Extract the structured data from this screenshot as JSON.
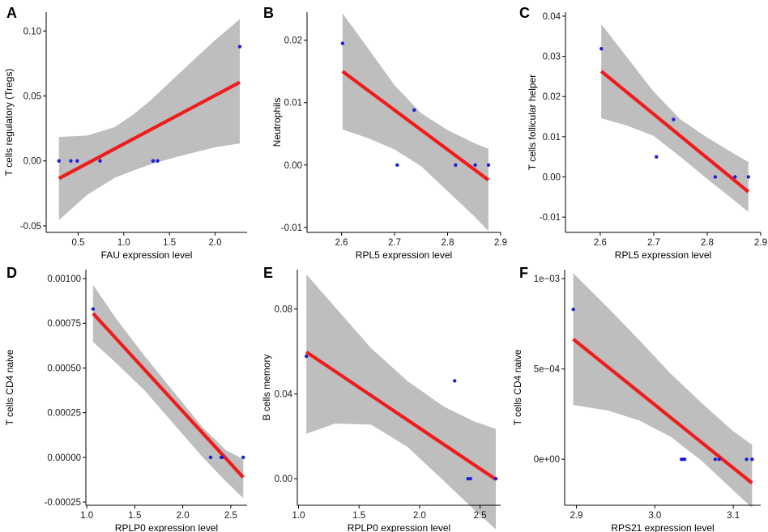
{
  "figure": {
    "style": {
      "ribbon_color": "#bebebe",
      "line_color": "#ee1c1c",
      "point_color": "#1f1fd6",
      "axis_color": "#000000"
    }
  },
  "chart_data": [
    {
      "panel": "A",
      "type": "scatter",
      "xlabel": "FAU expression level",
      "ylabel": "T cells regulatory (Tregs)",
      "xlim": [
        0.15,
        2.35
      ],
      "ylim": [
        -0.055,
        0.1145
      ],
      "xticks": [
        {
          "v": 0.5,
          "label": "0.5"
        },
        {
          "v": 1.0,
          "label": "1.0"
        },
        {
          "v": 1.5,
          "label": "1.5"
        },
        {
          "v": 2.0,
          "label": "2.0"
        }
      ],
      "yticks": [
        {
          "v": -0.05,
          "label": "-0.05"
        },
        {
          "v": 0.0,
          "label": "0.00"
        },
        {
          "v": 0.05,
          "label": "0.05"
        },
        {
          "v": 0.1,
          "label": "0.10"
        }
      ],
      "points": [
        [
          0.29,
          0.0
        ],
        [
          0.42,
          0.0
        ],
        [
          0.49,
          0.0
        ],
        [
          0.74,
          0.0
        ],
        [
          1.32,
          0.0
        ],
        [
          1.37,
          0.0
        ],
        [
          2.27,
          0.088
        ]
      ],
      "fit_line": [
        [
          0.29,
          -0.0135
        ],
        [
          2.27,
          0.0605
        ]
      ],
      "ribbon": [
        {
          "x": 0.29,
          "lo": -0.0455,
          "hi": 0.0185
        },
        {
          "x": 0.6,
          "lo": -0.026,
          "hi": 0.0195
        },
        {
          "x": 0.9,
          "lo": -0.013,
          "hi": 0.026
        },
        {
          "x": 1.1,
          "lo": -0.0075,
          "hi": 0.0355
        },
        {
          "x": 1.3,
          "lo": -0.0025,
          "hi": 0.047
        },
        {
          "x": 1.6,
          "lo": 0.0035,
          "hi": 0.067
        },
        {
          "x": 2.0,
          "lo": 0.0105,
          "hi": 0.093
        },
        {
          "x": 2.27,
          "lo": 0.0135,
          "hi": 0.109
        }
      ]
    },
    {
      "panel": "B",
      "type": "scatter",
      "xlabel": "RPL5 expression level",
      "ylabel": "Neutrophils",
      "xlim": [
        2.535,
        2.9
      ],
      "ylim": [
        -0.0108,
        0.0245
      ],
      "xticks": [
        {
          "v": 2.6,
          "label": "2.6"
        },
        {
          "v": 2.7,
          "label": "2.7"
        },
        {
          "v": 2.8,
          "label": "2.8"
        },
        {
          "v": 2.9,
          "label": "2.9"
        }
      ],
      "yticks": [
        {
          "v": -0.01,
          "label": "-0.01"
        },
        {
          "v": 0.0,
          "label": "0.00"
        },
        {
          "v": 0.01,
          "label": "0.01"
        },
        {
          "v": 0.02,
          "label": "0.02"
        }
      ],
      "points": [
        [
          2.602,
          0.0195
        ],
        [
          2.705,
          0.0
        ],
        [
          2.737,
          0.0088
        ],
        [
          2.815,
          0.0
        ],
        [
          2.852,
          0.0
        ],
        [
          2.877,
          0.0
        ]
      ],
      "fit_line": [
        [
          2.602,
          0.015
        ],
        [
          2.877,
          -0.0024
        ]
      ],
      "ribbon": [
        {
          "x": 2.602,
          "lo": 0.0057,
          "hi": 0.0243
        },
        {
          "x": 2.65,
          "lo": 0.0043,
          "hi": 0.0187
        },
        {
          "x": 2.7,
          "lo": 0.0025,
          "hi": 0.0128
        },
        {
          "x": 2.75,
          "lo": -0.0002,
          "hi": 0.0083
        },
        {
          "x": 2.8,
          "lo": -0.0042,
          "hi": 0.0056
        },
        {
          "x": 2.85,
          "lo": -0.0082,
          "hi": 0.0035
        },
        {
          "x": 2.877,
          "lo": -0.0106,
          "hi": 0.0026
        }
      ]
    },
    {
      "panel": "C",
      "type": "scatter",
      "xlabel": "RPL5 expression level",
      "ylabel": "T cells follicular helper",
      "xlim": [
        2.535,
        2.9
      ],
      "ylim": [
        -0.0138,
        0.041
      ],
      "xticks": [
        {
          "v": 2.6,
          "label": "2.6"
        },
        {
          "v": 2.7,
          "label": "2.7"
        },
        {
          "v": 2.8,
          "label": "2.8"
        },
        {
          "v": 2.9,
          "label": "2.9"
        }
      ],
      "yticks": [
        {
          "v": -0.01,
          "label": "-0.01"
        },
        {
          "v": 0.0,
          "label": "0.00"
        },
        {
          "v": 0.01,
          "label": "0.01"
        },
        {
          "v": 0.02,
          "label": "0.02"
        },
        {
          "v": 0.03,
          "label": "0.03"
        },
        {
          "v": 0.04,
          "label": "0.04"
        }
      ],
      "points": [
        [
          2.602,
          0.0319
        ],
        [
          2.705,
          0.005
        ],
        [
          2.737,
          0.0143
        ],
        [
          2.815,
          0.0
        ],
        [
          2.852,
          0.0
        ],
        [
          2.877,
          0.0
        ]
      ],
      "fit_line": [
        [
          2.602,
          0.0263
        ],
        [
          2.877,
          -0.0037
        ]
      ],
      "ribbon": [
        {
          "x": 2.602,
          "lo": 0.0146,
          "hi": 0.038
        },
        {
          "x": 2.65,
          "lo": 0.0128,
          "hi": 0.0298
        },
        {
          "x": 2.7,
          "lo": 0.0102,
          "hi": 0.0212
        },
        {
          "x": 2.75,
          "lo": 0.005,
          "hi": 0.0143
        },
        {
          "x": 2.8,
          "lo": -0.0005,
          "hi": 0.0098
        },
        {
          "x": 2.85,
          "lo": -0.0058,
          "hi": 0.0058
        },
        {
          "x": 2.877,
          "lo": -0.0087,
          "hi": 0.0037
        }
      ]
    },
    {
      "panel": "D",
      "type": "scatter",
      "xlabel": "RPLP0 expression level",
      "ylabel": "T cells CD4 naive",
      "xlim": [
        0.99,
        2.67
      ],
      "ylim": [
        -0.000268,
        0.00105
      ],
      "xticks": [
        {
          "v": 1.0,
          "label": "1.0"
        },
        {
          "v": 1.5,
          "label": "1.5"
        },
        {
          "v": 2.0,
          "label": "2.0"
        },
        {
          "v": 2.5,
          "label": "2.5"
        }
      ],
      "yticks": [
        {
          "v": -0.00025,
          "label": "-0.00025"
        },
        {
          "v": 0.0,
          "label": "0.00000"
        },
        {
          "v": 0.00025,
          "label": "0.00025"
        },
        {
          "v": 0.0005,
          "label": "0.00050"
        },
        {
          "v": 0.00075,
          "label": "0.00075"
        },
        {
          "v": 0.001,
          "label": "0.00100"
        }
      ],
      "points": [
        [
          1.065,
          0.00083
        ],
        [
          2.29,
          0.0
        ],
        [
          2.4,
          0.0
        ],
        [
          2.41,
          0.0
        ],
        [
          2.63,
          0.0
        ]
      ],
      "fit_line": [
        [
          1.065,
          0.000805
        ],
        [
          2.63,
          -0.000112
        ]
      ],
      "ribbon": [
        {
          "x": 1.065,
          "lo": 0.000645,
          "hi": 0.000965
        },
        {
          "x": 1.3,
          "lo": 0.00053,
          "hi": 0.00078
        },
        {
          "x": 1.6,
          "lo": 0.000375,
          "hi": 0.000568
        },
        {
          "x": 1.9,
          "lo": 0.00019,
          "hi": 0.00037
        },
        {
          "x": 2.2,
          "lo": 5e-06,
          "hi": 0.000172
        },
        {
          "x": 2.45,
          "lo": -0.000135,
          "hi": 4e-05
        },
        {
          "x": 2.63,
          "lo": -0.000228,
          "hi": -1e-05
        }
      ]
    },
    {
      "panel": "E",
      "type": "scatter",
      "xlabel": "RPLP0 expression level",
      "ylabel": "B cells memory",
      "xlim": [
        0.99,
        2.67
      ],
      "ylim": [
        -0.0125,
        0.0985
      ],
      "xticks": [
        {
          "v": 1.0,
          "label": "1.0"
        },
        {
          "v": 1.5,
          "label": "1.5"
        },
        {
          "v": 2.0,
          "label": "2.0"
        },
        {
          "v": 2.5,
          "label": "2.5"
        }
      ],
      "yticks": [
        {
          "v": 0.0,
          "label": "0.00"
        },
        {
          "v": 0.04,
          "label": "0.04"
        },
        {
          "v": 0.08,
          "label": "0.08"
        }
      ],
      "points": [
        [
          1.065,
          0.0577
        ],
        [
          2.29,
          0.0461
        ],
        [
          2.4,
          0.0
        ],
        [
          2.42,
          0.0
        ],
        [
          2.63,
          0.0
        ]
      ],
      "fit_line": [
        [
          1.065,
          0.0597
        ],
        [
          2.63,
          -0.0003
        ]
      ],
      "ribbon": [
        {
          "x": 1.065,
          "lo": 0.0212,
          "hi": 0.0962
        },
        {
          "x": 1.3,
          "lo": 0.026,
          "hi": 0.081
        },
        {
          "x": 1.6,
          "lo": 0.0255,
          "hi": 0.0615
        },
        {
          "x": 1.9,
          "lo": 0.015,
          "hi": 0.046
        },
        {
          "x": 2.2,
          "lo": -0.001,
          "hi": 0.034
        },
        {
          "x": 2.45,
          "lo": -0.0145,
          "hi": 0.027
        },
        {
          "x": 2.63,
          "lo": -0.0238,
          "hi": 0.0235
        }
      ]
    },
    {
      "panel": "F",
      "type": "scatter",
      "xlabel": "RPS21 expression level",
      "ylabel": "T cells CD4 naive",
      "xlim": [
        2.885,
        3.135
      ],
      "ylim": [
        -0.000255,
        0.00105
      ],
      "xticks": [
        {
          "v": 2.9,
          "label": "2.9"
        },
        {
          "v": 3.0,
          "label": "3.0"
        },
        {
          "v": 3.1,
          "label": "3.1"
        }
      ],
      "yticks": [
        {
          "v": 0.0,
          "label": "0e+00"
        },
        {
          "v": 0.0005,
          "label": "5e−04"
        },
        {
          "v": 0.001,
          "label": "1e−03"
        }
      ],
      "points": [
        [
          2.896,
          0.00083
        ],
        [
          3.034,
          0.0
        ],
        [
          3.036,
          0.0
        ],
        [
          3.038,
          0.0
        ],
        [
          3.077,
          0.0
        ],
        [
          3.082,
          0.0
        ],
        [
          3.117,
          0.0
        ],
        [
          3.124,
          0.0
        ]
      ],
      "fit_line": [
        [
          2.896,
          0.000665
        ],
        [
          3.124,
          -0.000132
        ]
      ],
      "ribbon": [
        {
          "x": 2.896,
          "lo": 0.0003,
          "hi": 0.00103
        },
        {
          "x": 2.94,
          "lo": 0.00027,
          "hi": 0.00084
        },
        {
          "x": 2.98,
          "lo": 0.000215,
          "hi": 0.00066
        },
        {
          "x": 3.02,
          "lo": 0.000125,
          "hi": 0.000475
        },
        {
          "x": 3.06,
          "lo": -1e-05,
          "hi": 0.00031
        },
        {
          "x": 3.1,
          "lo": -0.000172,
          "hi": 0.000155
        },
        {
          "x": 3.124,
          "lo": -0.00027,
          "hi": 8e-05
        }
      ]
    }
  ]
}
